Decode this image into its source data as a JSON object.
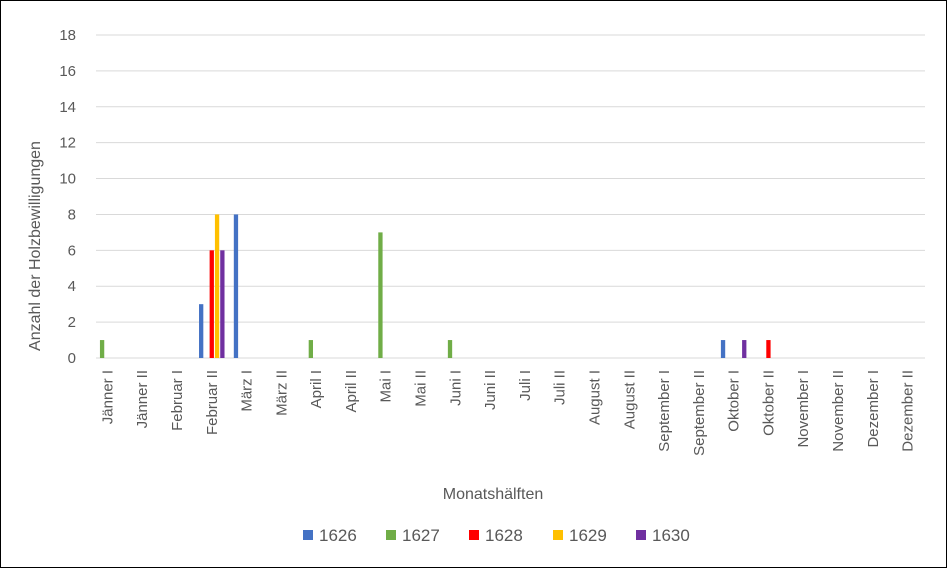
{
  "chart_data": {
    "type": "bar",
    "title": "",
    "xlabel": "Monatshälften",
    "ylabel": "Anzahl der Holzbewilligungen",
    "ylim": [
      0,
      18
    ],
    "ytick_step": 2,
    "grid": true,
    "legend_position": "bottom",
    "categories": [
      "Jänner I",
      "Jänner II",
      "Februar I",
      "Februar II",
      "März I",
      "März II",
      "April I",
      "April II",
      "Mai I",
      "Mai II",
      "Juni I",
      "Juni II",
      "Juli I",
      "Juli II",
      "August I",
      "August II",
      "September I",
      "September II",
      "Oktober I",
      "Oktober II",
      "November I",
      "November II",
      "Dezember I",
      "Dezember II"
    ],
    "series": [
      {
        "name": "1626",
        "color": "#4472C4",
        "values": [
          0,
          0,
          0,
          3,
          8,
          0,
          0,
          0,
          0,
          0,
          0,
          0,
          0,
          0,
          0,
          0,
          0,
          0,
          1,
          0,
          0,
          0,
          0,
          0
        ]
      },
      {
        "name": "1627",
        "color": "#70AD47",
        "values": [
          1,
          0,
          0,
          0,
          0,
          0,
          1,
          0,
          7,
          0,
          1,
          0,
          0,
          0,
          0,
          0,
          0,
          0,
          0,
          0,
          0,
          0,
          0,
          0
        ]
      },
      {
        "name": "1628",
        "color": "#FF0000",
        "values": [
          0,
          0,
          0,
          6,
          0,
          0,
          0,
          0,
          0,
          0,
          0,
          0,
          0,
          0,
          0,
          0,
          0,
          0,
          0,
          1,
          0,
          0,
          0,
          0
        ]
      },
      {
        "name": "1629",
        "color": "#FFC000",
        "values": [
          0,
          0,
          0,
          8,
          0,
          0,
          0,
          0,
          0,
          0,
          0,
          0,
          0,
          0,
          0,
          0,
          0,
          0,
          0,
          0,
          0,
          0,
          0,
          0
        ]
      },
      {
        "name": "1630",
        "color": "#7030A0",
        "values": [
          0,
          0,
          0,
          6,
          0,
          0,
          0,
          0,
          0,
          0,
          0,
          0,
          0,
          0,
          0,
          0,
          0,
          0,
          1,
          0,
          0,
          0,
          0,
          0
        ]
      }
    ]
  }
}
